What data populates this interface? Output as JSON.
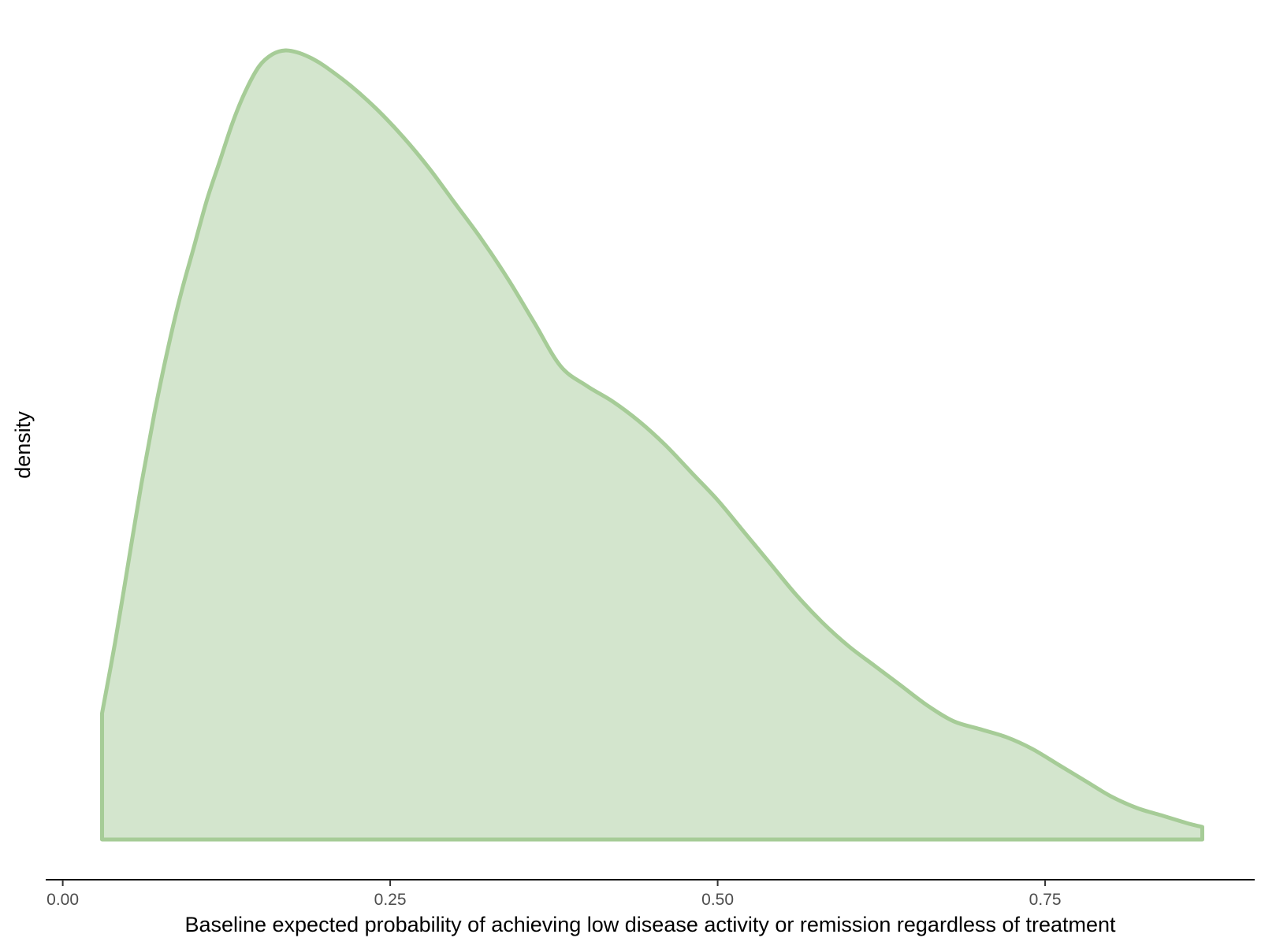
{
  "chart_data": {
    "type": "area",
    "subtype": "density",
    "title": "",
    "xlabel": "Baseline expected probability of achieving low disease activity or remission regardless of treatment",
    "ylabel": "density",
    "xlim": [
      -0.013,
      0.91
    ],
    "ylim": [
      0,
      1.0
    ],
    "x_ticks": [
      0.0,
      0.25,
      0.5,
      0.75
    ],
    "x_tick_labels": [
      "0.00",
      "0.25",
      "0.50",
      "0.75"
    ],
    "y_ticks": [],
    "y_tick_labels": [],
    "grid": false,
    "legend": null,
    "fill_color": "#d3e5cd",
    "line_color": "#a6cc97",
    "axis_color": "#000000",
    "series": [
      {
        "x": [
          0.03,
          0.04,
          0.05,
          0.06,
          0.07,
          0.08,
          0.09,
          0.1,
          0.11,
          0.12,
          0.13,
          0.14,
          0.15,
          0.16,
          0.17,
          0.18,
          0.19,
          0.2,
          0.22,
          0.24,
          0.26,
          0.28,
          0.3,
          0.32,
          0.34,
          0.36,
          0.38,
          0.4,
          0.42,
          0.44,
          0.46,
          0.48,
          0.5,
          0.52,
          0.54,
          0.56,
          0.58,
          0.6,
          0.62,
          0.64,
          0.66,
          0.68,
          0.7,
          0.72,
          0.74,
          0.76,
          0.78,
          0.8,
          0.82,
          0.84,
          0.86,
          0.87
        ],
        "values": [
          0.16,
          0.25,
          0.35,
          0.45,
          0.54,
          0.62,
          0.69,
          0.75,
          0.81,
          0.86,
          0.91,
          0.95,
          0.98,
          0.995,
          1.0,
          0.997,
          0.99,
          0.98,
          0.955,
          0.925,
          0.89,
          0.85,
          0.805,
          0.76,
          0.71,
          0.655,
          0.6,
          0.575,
          0.555,
          0.53,
          0.5,
          0.465,
          0.43,
          0.39,
          0.35,
          0.31,
          0.275,
          0.245,
          0.22,
          0.195,
          0.17,
          0.15,
          0.14,
          0.13,
          0.115,
          0.095,
          0.075,
          0.055,
          0.04,
          0.03,
          0.02,
          0.016
        ]
      }
    ]
  }
}
